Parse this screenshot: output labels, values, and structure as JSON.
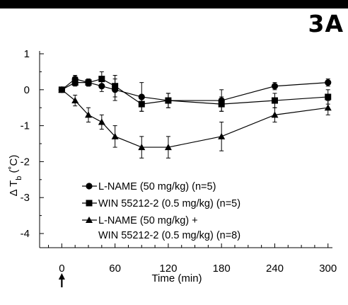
{
  "panel_label": "3A",
  "colors": {
    "ink": "#000000",
    "background": "#ffffff"
  },
  "chart_data": {
    "type": "line",
    "title": "",
    "xlabel": "Time (min)",
    "ylabel_main": "Δ T",
    "ylabel_sub": "b",
    "ylabel_unit": " (˚C)",
    "xlim": [
      -25,
      305
    ],
    "ylim": [
      -4,
      1
    ],
    "xticks": [
      0,
      60,
      120,
      180,
      240,
      300
    ],
    "yticks": [
      1,
      0,
      -1,
      -2,
      -3,
      -4
    ],
    "injection_marker": {
      "x": 0,
      "glyph": "up-arrow"
    },
    "legend_position": "bottom-center",
    "series": [
      {
        "name": "L-NAME (50 mg/kg) (n=5)",
        "marker": "circle",
        "x": [
          0,
          15,
          30,
          45,
          60,
          90,
          120,
          180,
          240,
          300
        ],
        "y": [
          0,
          0.3,
          0.2,
          0.1,
          0.0,
          -0.2,
          -0.3,
          -0.3,
          0.1,
          0.2
        ],
        "err": [
          0.05,
          0.1,
          0.1,
          0.15,
          0.3,
          0.4,
          0.2,
          0.3,
          0.1,
          0.1
        ]
      },
      {
        "name": "WIN 55212-2 (0.5 mg/kg) (n=5)",
        "marker": "square",
        "x": [
          0,
          15,
          30,
          45,
          60,
          90,
          120,
          180,
          240,
          300
        ],
        "y": [
          0,
          0.2,
          0.2,
          0.3,
          0.1,
          -0.4,
          -0.3,
          -0.4,
          -0.3,
          -0.2
        ],
        "err": [
          0.05,
          0.1,
          0.1,
          0.2,
          0.3,
          0.2,
          0.2,
          0.2,
          0.2,
          0.2
        ]
      },
      {
        "name_line1": "L-NAME (50 mg/kg) +",
        "name_line2": "WIN 55212-2 (0.5 mg/kg) (n=8)",
        "marker": "triangle",
        "x": [
          0,
          15,
          30,
          45,
          60,
          90,
          120,
          180,
          240,
          300
        ],
        "y": [
          0,
          -0.3,
          -0.7,
          -0.9,
          -1.3,
          -1.6,
          -1.6,
          -1.3,
          -0.7,
          -0.5
        ],
        "err": [
          0.05,
          0.15,
          0.2,
          0.2,
          0.3,
          0.3,
          0.3,
          0.4,
          0.2,
          0.2
        ]
      }
    ]
  }
}
